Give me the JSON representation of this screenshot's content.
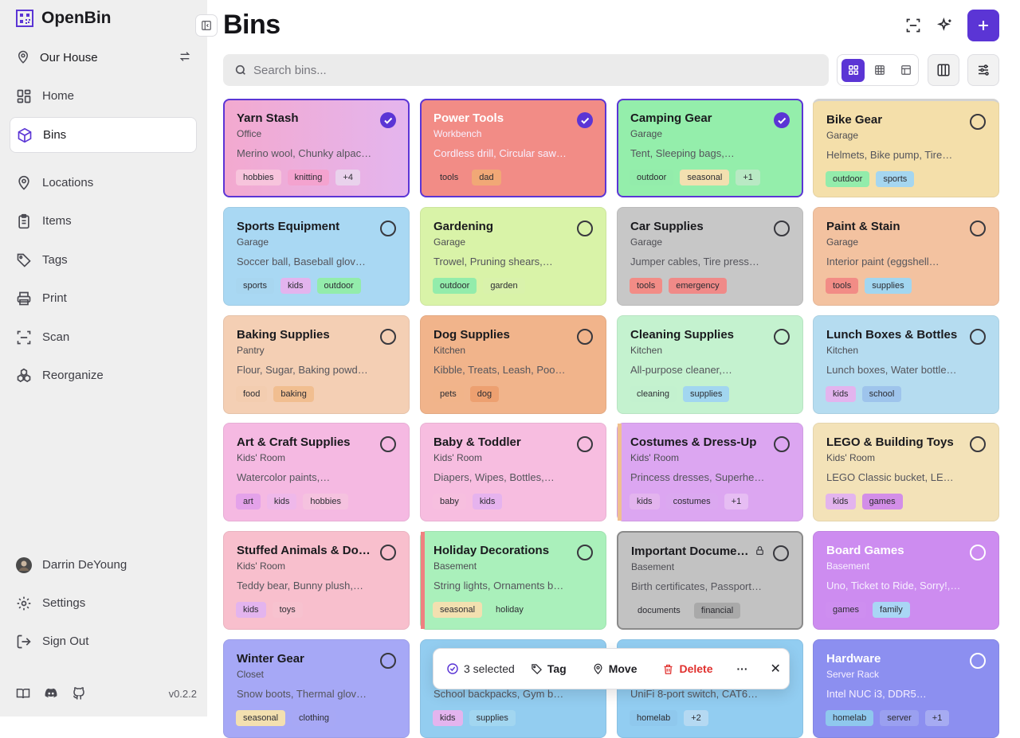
{
  "app": {
    "name": "OpenBin",
    "version": "v0.2.2"
  },
  "location": {
    "name": "Our House"
  },
  "nav": [
    {
      "label": "Home",
      "icon": "home-icon",
      "active": false
    },
    {
      "label": "Bins",
      "icon": "box-icon",
      "active": true
    },
    {
      "label": "Locations",
      "icon": "map-pin-icon",
      "active": false
    },
    {
      "label": "Items",
      "icon": "clipboard-icon",
      "active": false
    },
    {
      "label": "Tags",
      "icon": "tag-icon",
      "active": false
    },
    {
      "label": "Print",
      "icon": "printer-icon",
      "active": false
    },
    {
      "label": "Scan",
      "icon": "scan-icon",
      "active": false
    },
    {
      "label": "Reorganize",
      "icon": "boxes-icon",
      "active": false
    }
  ],
  "user": {
    "name": "Darrin DeYoung",
    "settings_label": "Settings",
    "signout_label": "Sign Out"
  },
  "header": {
    "title": "Bins"
  },
  "search": {
    "placeholder": "Search bins..."
  },
  "bins": [
    {
      "name": "Yarn Stash",
      "location": "Office",
      "items": "Merino wool, Chunky alpac…",
      "tags": [
        {
          "label": "hobbies",
          "color": "#f7c4dc"
        },
        {
          "label": "knitting",
          "color": "#f4a3cf"
        },
        {
          "label": "+4",
          "color": "#e9d2ec"
        }
      ],
      "selected": true,
      "bg": "linear-gradient(90deg,#f3a9cf,#e4b5ee)"
    },
    {
      "name": "Power Tools",
      "location": "Workbench",
      "items": "Cordless drill, Circular saw…",
      "tags": [
        {
          "label": "tools",
          "color": "#f28c86"
        },
        {
          "label": "dad",
          "color": "#f1a876"
        }
      ],
      "selected": true,
      "bg": "#f28c86",
      "dark": true
    },
    {
      "name": "Camping Gear",
      "location": "Garage",
      "items": "Tent, Sleeping bags,…",
      "tags": [
        {
          "label": "outdoor",
          "color": "#93ecab"
        },
        {
          "label": "seasonal",
          "color": "#f3e0b0"
        },
        {
          "label": "+1",
          "color": "#b9e9c4"
        }
      ],
      "selected": true,
      "bg": "#94eeab"
    },
    {
      "name": "Bike Gear",
      "location": "Garage",
      "items": "Helmets, Bike pump, Tire…",
      "tags": [
        {
          "label": "outdoor",
          "color": "#93ecab"
        },
        {
          "label": "sports",
          "color": "#a5d6f0"
        }
      ],
      "selected": false,
      "bg": "#f4dfaa",
      "topline": "#d2d2d2"
    },
    {
      "name": "Sports Equipment",
      "location": "Garage",
      "items": "Soccer ball, Baseball glov…",
      "tags": [
        {
          "label": "sports",
          "color": "#a8d6f0"
        },
        {
          "label": "kids",
          "color": "#e3b4ee"
        },
        {
          "label": "outdoor",
          "color": "#93ecab"
        }
      ],
      "selected": false,
      "bg": "#a9d8f3"
    },
    {
      "name": "Gardening",
      "location": "Garage",
      "items": "Trowel, Pruning shears,…",
      "tags": [
        {
          "label": "outdoor",
          "color": "#93ecab"
        },
        {
          "label": "garden",
          "color": "#d9f2ab"
        }
      ],
      "selected": false,
      "bg": "#d9f3a8"
    },
    {
      "name": "Car Supplies",
      "location": "Garage",
      "items": "Jumper cables, Tire press…",
      "tags": [
        {
          "label": "tools",
          "color": "#f28c86"
        },
        {
          "label": "emergency",
          "color": "#f08a88"
        }
      ],
      "selected": false,
      "bg": "#c7c7c7"
    },
    {
      "name": "Paint & Stain",
      "location": "Garage",
      "items": "Interior paint (eggshell…",
      "tags": [
        {
          "label": "tools",
          "color": "#f28c86"
        },
        {
          "label": "supplies",
          "color": "#a2d6f0"
        }
      ],
      "selected": false,
      "bg": "#f3c2a0"
    },
    {
      "name": "Baking Supplies",
      "location": "Pantry",
      "items": "Flour, Sugar, Baking powd…",
      "tags": [
        {
          "label": "food",
          "color": "#f3cdb0"
        },
        {
          "label": "baking",
          "color": "#f1be90"
        }
      ],
      "selected": false,
      "bg": "#f4cfb4"
    },
    {
      "name": "Dog Supplies",
      "location": "Kitchen",
      "items": "Kibble, Treats, Leash, Poo…",
      "tags": [
        {
          "label": "pets",
          "color": "#f1b48a"
        },
        {
          "label": "dog",
          "color": "#eda070"
        }
      ],
      "selected": false,
      "bg": "#f1b48b"
    },
    {
      "name": "Cleaning Supplies",
      "location": "Kitchen",
      "items": "All-purpose cleaner,…",
      "tags": [
        {
          "label": "cleaning",
          "color": "#c3f1cf"
        },
        {
          "label": "supplies",
          "color": "#a2d6f0"
        }
      ],
      "selected": false,
      "bg": "#c4f2cf"
    },
    {
      "name": "Lunch Boxes & Bottles",
      "location": "Kitchen",
      "items": "Lunch boxes, Water bottle…",
      "tags": [
        {
          "label": "kids",
          "color": "#e3b4ee"
        },
        {
          "label": "school",
          "color": "#9ec4ec"
        }
      ],
      "selected": false,
      "bg": "#b5dcf0"
    },
    {
      "name": "Art & Craft Supplies",
      "location": "Kids' Room",
      "items": "Watercolor paints,…",
      "tags": [
        {
          "label": "art",
          "color": "#e4a2ea"
        },
        {
          "label": "kids",
          "color": "#efb8ea"
        },
        {
          "label": "hobbies",
          "color": "#f5c2df"
        }
      ],
      "selected": false,
      "bg": "#f5b9e2"
    },
    {
      "name": "Baby & Toddler",
      "location": "Kids' Room",
      "items": "Diapers, Wipes, Bottles,…",
      "tags": [
        {
          "label": "baby",
          "color": "#f7bfdf"
        },
        {
          "label": "kids",
          "color": "#e6b3ee"
        }
      ],
      "selected": false,
      "bg": "#f7bde0"
    },
    {
      "name": "Costumes & Dress-Up",
      "location": "Kids' Room",
      "items": "Princess dresses, Superhe…",
      "tags": [
        {
          "label": "kids",
          "color": "#e3b4ee"
        },
        {
          "label": "costumes",
          "color": "#dba8f0"
        },
        {
          "label": "+1",
          "color": "#e6bdf3"
        }
      ],
      "selected": false,
      "bg": "#dca6f1",
      "stripe": "#f0c090"
    },
    {
      "name": "LEGO & Building Toys",
      "location": "Kids' Room",
      "items": "LEGO Classic bucket, LE…",
      "tags": [
        {
          "label": "kids",
          "color": "#e3b4ee"
        },
        {
          "label": "games",
          "color": "#d38ee8"
        }
      ],
      "selected": false,
      "bg": "#f3e2b8"
    },
    {
      "name": "Stuffed Animals & Do…",
      "location": "Kids' Room",
      "items": "Teddy bear, Bunny plush,…",
      "tags": [
        {
          "label": "kids",
          "color": "#e3b4ee"
        },
        {
          "label": "toys",
          "color": "#f7c2cf"
        }
      ],
      "selected": false,
      "bg": "#f8bfcd"
    },
    {
      "name": "Holiday Decorations",
      "location": "Basement",
      "items": "String lights, Ornaments b…",
      "tags": [
        {
          "label": "seasonal",
          "color": "#f3e0b0"
        },
        {
          "label": "holiday",
          "color": "#aaf0bb"
        }
      ],
      "selected": false,
      "bg": "#aaf0bb",
      "stripe": "#ef8080"
    },
    {
      "name": "Important Docume…",
      "location": "Basement",
      "items": "Birth certificates, Passport…",
      "tags": [
        {
          "label": "documents",
          "color": "#c2c2c2"
        },
        {
          "label": "financial",
          "color": "#a9a9a9"
        }
      ],
      "selected": false,
      "bg": "#c2c2c2",
      "locked": true,
      "border": "#8a8a8a"
    },
    {
      "name": "Board Games",
      "location": "Basement",
      "items": "Uno, Ticket to Ride, Sorry!,…",
      "tags": [
        {
          "label": "games",
          "color": "#ce8ef0"
        },
        {
          "label": "family",
          "color": "#a9d6f5"
        }
      ],
      "selected": false,
      "bg": "#cd8cf0",
      "dark": true
    },
    {
      "name": "Winter Gear",
      "location": "Closet",
      "items": "Snow boots, Thermal glov…",
      "tags": [
        {
          "label": "seasonal",
          "color": "#f3e0b0"
        },
        {
          "label": "clothing",
          "color": "#a7a8f5"
        }
      ],
      "selected": false,
      "bg": "#a6a8f6"
    },
    {
      "name": "",
      "location": "",
      "items": "School backpacks, Gym b…",
      "tags": [
        {
          "label": "kids",
          "color": "#e3b4ee"
        },
        {
          "label": "supplies",
          "color": "#a2d6f0"
        }
      ],
      "selected": false,
      "bg": "#93cdf0"
    },
    {
      "name": "",
      "location": "",
      "items": "UniFi 8-port switch, CAT6…",
      "tags": [
        {
          "label": "homelab",
          "color": "#8fc8ed"
        },
        {
          "label": "+2",
          "color": "#b5d9f2"
        }
      ],
      "selected": false,
      "bg": "#92cdf1"
    },
    {
      "name": "Hardware",
      "location": "Server Rack",
      "items": "Intel NUC i3, DDR5…",
      "tags": [
        {
          "label": "homelab",
          "color": "#8fc8ed"
        },
        {
          "label": "server",
          "color": "#9aa0f0"
        },
        {
          "label": "+1",
          "color": "#a6abf2"
        }
      ],
      "selected": false,
      "bg": "#8c8ff0",
      "dark": true
    }
  ],
  "bulk": {
    "selected_label": "3 selected",
    "tag_label": "Tag",
    "move_label": "Move",
    "delete_label": "Delete",
    "more_label": "···",
    "close_label": "✕"
  },
  "colors": {
    "accent": "#5b35d5",
    "delete": "#e0302e"
  }
}
